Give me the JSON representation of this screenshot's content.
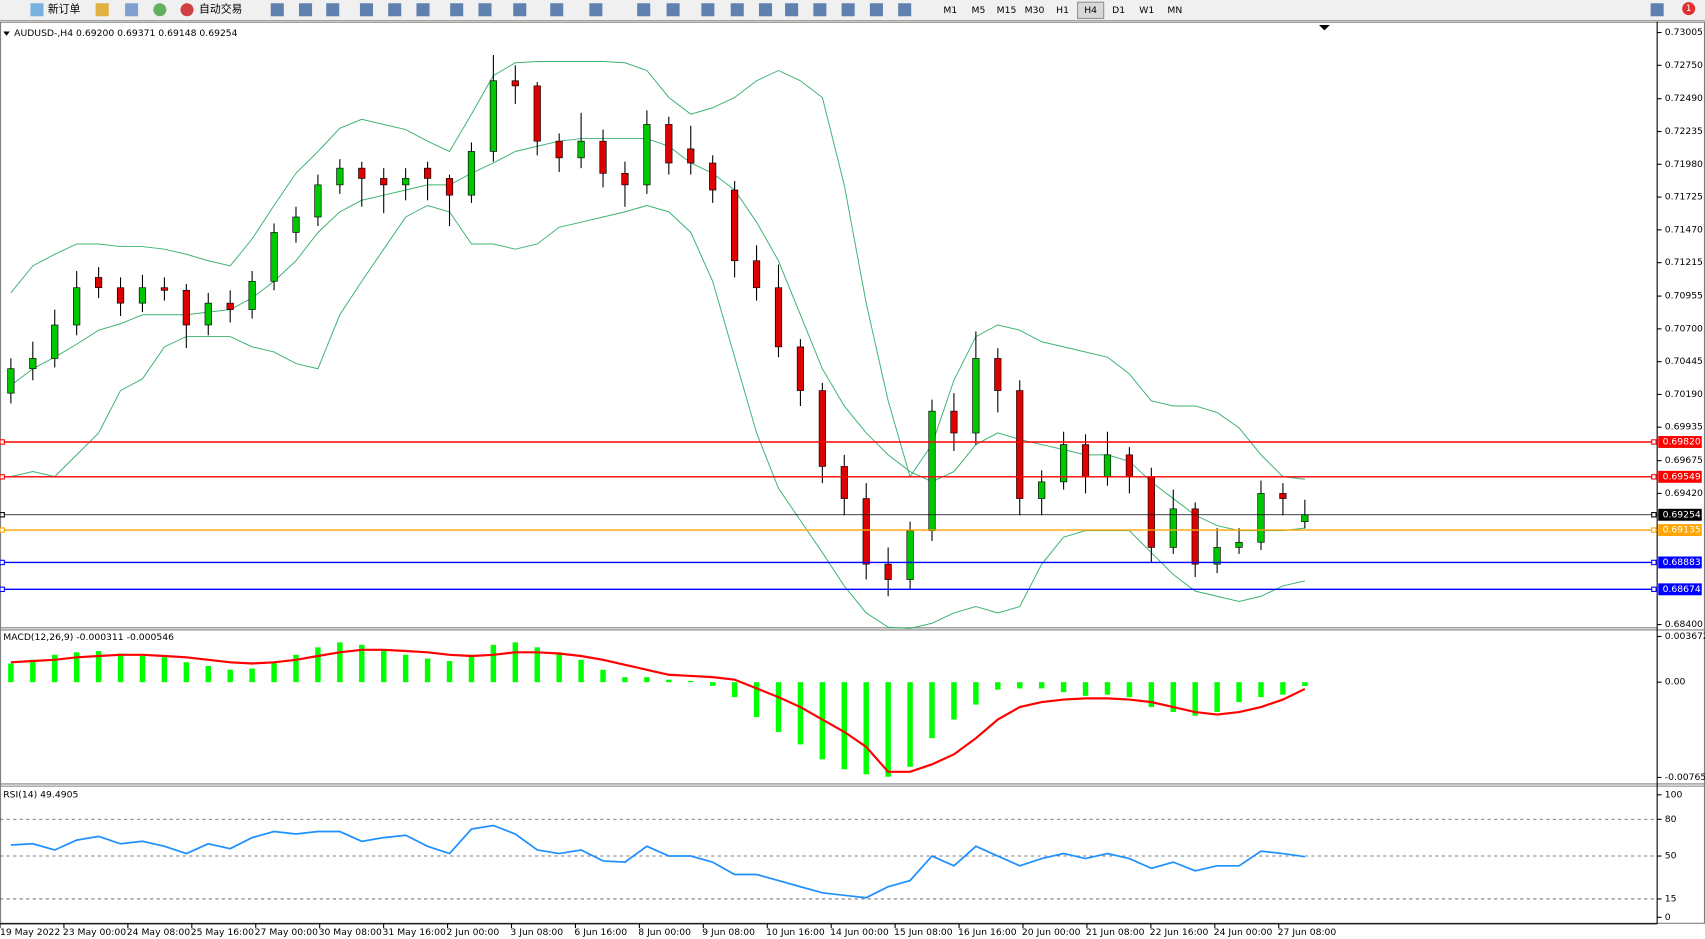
{
  "toolbar": {
    "new_order": "新订单",
    "auto_trading": "自动交易",
    "timeframes": [
      "M1",
      "M5",
      "M15",
      "M30",
      "H1",
      "H4",
      "D1",
      "W1",
      "MN"
    ],
    "notification_count": "1"
  },
  "chart": {
    "header": "AUDUSD-,H4  0.69200 0.69371 0.69148 0.69254",
    "ylim": [
      0.684,
      0.73005
    ],
    "price_ticks": [
      0.73005,
      {
        "value": 0.7275,
        "label": "0.72750"
      },
      {
        "value": 0.7249,
        "label": "0.72490"
      },
      0.72235,
      {
        "value": 0.7198,
        "label": "0.71980"
      },
      0.71725,
      {
        "value": 0.7147,
        "label": "0.71470"
      },
      0.71215,
      0.70955,
      {
        "value": 0.707,
        "label": "0.70700"
      },
      0.70445,
      {
        "value": 0.7019,
        "label": "0.70190"
      },
      0.69935,
      0.69675,
      {
        "value": 0.6942,
        "label": "0.69420"
      },
      {
        "value": 0.684,
        "label": "0.68400"
      }
    ],
    "candles": [
      [
        0.702,
        0.7047,
        0.7012,
        0.7039
      ],
      [
        0.7039,
        0.706,
        0.703,
        0.7047
      ],
      [
        0.7047,
        0.7085,
        0.704,
        0.7073
      ],
      [
        0.7073,
        0.7115,
        0.7065,
        0.7102
      ],
      [
        0.711,
        0.7118,
        0.7094,
        0.7102
      ],
      [
        0.7102,
        0.711,
        0.708,
        0.709
      ],
      [
        0.709,
        0.7112,
        0.7083,
        0.7102
      ],
      [
        0.7102,
        0.711,
        0.7092,
        0.71
      ],
      [
        0.71,
        0.7105,
        0.7055,
        0.7073
      ],
      [
        0.7073,
        0.7098,
        0.7065,
        0.709
      ],
      [
        0.709,
        0.71,
        0.7075,
        0.7085
      ],
      [
        0.7085,
        0.7115,
        0.7078,
        0.7107
      ],
      [
        0.7107,
        0.7152,
        0.71,
        0.7145
      ],
      [
        0.7145,
        0.7165,
        0.7137,
        0.7157
      ],
      [
        0.7157,
        0.719,
        0.715,
        0.7182
      ],
      [
        0.7182,
        0.7202,
        0.7175,
        0.7195
      ],
      [
        0.7195,
        0.72,
        0.7165,
        0.7187
      ],
      [
        0.7187,
        0.7195,
        0.716,
        0.7182
      ],
      [
        0.7182,
        0.7195,
        0.717,
        0.7187
      ],
      [
        0.7195,
        0.72,
        0.717,
        0.7187
      ],
      [
        0.7187,
        0.719,
        0.715,
        0.7174
      ],
      [
        0.7174,
        0.7215,
        0.7168,
        0.7208
      ],
      [
        0.7208,
        0.7283,
        0.72,
        0.7263
      ],
      [
        0.7263,
        0.7275,
        0.7245,
        0.7259
      ],
      [
        0.7259,
        0.7262,
        0.7205,
        0.7216
      ],
      [
        0.7216,
        0.7222,
        0.7192,
        0.7203
      ],
      [
        0.7203,
        0.7238,
        0.7195,
        0.7216
      ],
      [
        0.7216,
        0.7225,
        0.718,
        0.7191
      ],
      [
        0.7191,
        0.72,
        0.7165,
        0.7182
      ],
      [
        0.7182,
        0.724,
        0.7175,
        0.7229
      ],
      [
        0.7229,
        0.7235,
        0.719,
        0.7199
      ],
      [
        0.721,
        0.7228,
        0.719,
        0.7199
      ],
      [
        0.7199,
        0.7205,
        0.7168,
        0.7178
      ],
      [
        0.7178,
        0.7185,
        0.711,
        0.7123
      ],
      [
        0.7123,
        0.7135,
        0.7092,
        0.7102
      ],
      [
        0.7102,
        0.712,
        0.7048,
        0.7056
      ],
      [
        0.7056,
        0.7062,
        0.701,
        0.7022
      ],
      [
        0.7022,
        0.7028,
        0.695,
        0.6963
      ],
      [
        0.6963,
        0.6972,
        0.6925,
        0.6938
      ],
      [
        0.6938,
        0.695,
        0.6875,
        0.6887
      ],
      [
        0.6887,
        0.69,
        0.6862,
        0.6875
      ],
      [
        0.6875,
        0.692,
        0.6868,
        0.6913
      ],
      [
        0.6913,
        0.7015,
        0.6905,
        0.7006
      ],
      [
        0.7006,
        0.702,
        0.6975,
        0.6989
      ],
      [
        0.6989,
        0.7068,
        0.698,
        0.7047
      ],
      [
        0.7047,
        0.7055,
        0.7005,
        0.7022
      ],
      [
        0.7022,
        0.703,
        0.6925,
        0.6938
      ],
      [
        0.6938,
        0.696,
        0.6925,
        0.6951
      ],
      [
        0.6951,
        0.699,
        0.6945,
        0.698
      ],
      [
        0.698,
        0.6988,
        0.6942,
        0.6955
      ],
      [
        0.6955,
        0.699,
        0.6948,
        0.6972
      ],
      [
        0.6972,
        0.6978,
        0.6942,
        0.6955
      ],
      [
        0.6955,
        0.6962,
        0.6888,
        0.69
      ],
      [
        0.69,
        0.6945,
        0.6895,
        0.693
      ],
      [
        0.693,
        0.6935,
        0.6877,
        0.6887
      ],
      [
        0.6887,
        0.6915,
        0.688,
        0.69
      ],
      [
        0.69,
        0.6915,
        0.6895,
        0.6904
      ],
      [
        0.6904,
        0.6952,
        0.6898,
        0.6942
      ],
      [
        0.6942,
        0.695,
        0.6925,
        0.6938
      ],
      [
        0.692,
        0.69371,
        0.69148,
        0.69254
      ]
    ],
    "bollinger": {
      "color": "#3cb371",
      "upper": [
        0.7098,
        0.7119,
        0.7128,
        0.7136,
        0.7136,
        0.7134,
        0.7134,
        0.7132,
        0.7128,
        0.7123,
        0.7119,
        0.714,
        0.7166,
        0.7191,
        0.7208,
        0.7226,
        0.7233,
        0.7229,
        0.7225,
        0.7216,
        0.7208,
        0.7237,
        0.7267,
        0.7277,
        0.7278,
        0.7278,
        0.7278,
        0.7278,
        0.7277,
        0.7271,
        0.725,
        0.7237,
        0.7242,
        0.725,
        0.7263,
        0.7271,
        0.7263,
        0.725,
        0.7182,
        0.709,
        0.7014,
        0.6955,
        0.698,
        0.703,
        0.7064,
        0.7073,
        0.7069,
        0.706,
        0.7056,
        0.7052,
        0.7048,
        0.7035,
        0.7014,
        0.701,
        0.701,
        0.7005,
        0.6993,
        0.6972,
        0.6955,
        0.6953
      ],
      "middle": [
        0.7026,
        0.7039,
        0.7048,
        0.7058,
        0.7069,
        0.7074,
        0.7081,
        0.7081,
        0.7081,
        0.7083,
        0.7085,
        0.7094,
        0.7107,
        0.7123,
        0.7145,
        0.7161,
        0.717,
        0.7174,
        0.7178,
        0.7182,
        0.7182,
        0.7191,
        0.7199,
        0.7208,
        0.7212,
        0.7216,
        0.7218,
        0.7218,
        0.7218,
        0.7218,
        0.7212,
        0.7199,
        0.7191,
        0.7178,
        0.7153,
        0.7123,
        0.7081,
        0.7039,
        0.701,
        0.6989,
        0.6972,
        0.6959,
        0.6951,
        0.6959,
        0.698,
        0.6989,
        0.6984,
        0.698,
        0.6976,
        0.6972,
        0.6972,
        0.6967,
        0.6951,
        0.6938,
        0.6925,
        0.6917,
        0.6913,
        0.6913,
        0.6913,
        0.6915
      ],
      "lower": [
        0.6955,
        0.6959,
        0.6955,
        0.6972,
        0.6989,
        0.7022,
        0.7031,
        0.7056,
        0.7064,
        0.7064,
        0.7064,
        0.7056,
        0.7052,
        0.7043,
        0.7039,
        0.7081,
        0.7107,
        0.7132,
        0.7157,
        0.7166,
        0.7161,
        0.7136,
        0.7136,
        0.7132,
        0.7136,
        0.7149,
        0.7153,
        0.7157,
        0.7161,
        0.7166,
        0.7161,
        0.7145,
        0.7107,
        0.7048,
        0.6989,
        0.6946,
        0.6921,
        0.6896,
        0.687,
        0.6849,
        0.6838,
        0.6837,
        0.6841,
        0.6849,
        0.6854,
        0.6849,
        0.6854,
        0.6887,
        0.6908,
        0.6913,
        0.6913,
        0.6913,
        0.6896,
        0.6879,
        0.6866,
        0.6862,
        0.6858,
        0.6862,
        0.687,
        0.6874
      ]
    },
    "levels": [
      {
        "value": 0.6982,
        "label": "0.69820",
        "color": "#ff0000"
      },
      {
        "value": 0.69549,
        "color": "#ff0000"
      },
      {
        "value": 0.69254,
        "color": "#000000"
      },
      {
        "value": 0.69135,
        "color": "#ffa500"
      },
      {
        "value": 0.68883,
        "color": "#0000ff"
      },
      {
        "value": 0.68674,
        "color": "#0000ff"
      }
    ],
    "dates": [
      "19 May 2022",
      "23 May 00:00",
      "24 May 08:00",
      "25 May 16:00",
      "27 May 00:00",
      "30 May 08:00",
      "31 May 16:00",
      "2 Jun 00:00",
      "3 Jun 08:00",
      "6 Jun 16:00",
      "8 Jun 00:00",
      "9 Jun 08:00",
      "10 Jun 16:00",
      "14 Jun 00:00",
      "15 Jun 08:00",
      "16 Jun 16:00",
      "20 Jun 00:00",
      "21 Jun 08:00",
      "22 Jun 16:00",
      "24 Jun 00:00",
      "27 Jun 08:00"
    ]
  },
  "macd": {
    "label": "MACD(12,26,9) -0.000311 -0.000546",
    "ylim": [
      -0.007656,
      0.003672
    ],
    "ticks": [
      0.003672,
      {
        "value": 0,
        "label": "0.00"
      },
      -0.007656
    ],
    "histogram": [
      0.0015,
      0.0018,
      0.0022,
      0.0024,
      0.0025,
      0.0023,
      0.0021,
      0.002,
      0.0016,
      0.0013,
      0.001,
      0.0011,
      0.0016,
      0.0022,
      0.0028,
      0.0032,
      0.003,
      0.0026,
      0.0022,
      0.0019,
      0.0017,
      0.0022,
      0.003,
      0.0032,
      0.0028,
      0.0024,
      0.0018,
      0.001,
      0.0004,
      0.0004,
      0.0002,
      0.0001,
      -0.0003,
      -0.0012,
      -0.0028,
      -0.004,
      -0.005,
      -0.0062,
      -0.007,
      -0.0074,
      -0.0076,
      -0.0068,
      -0.0045,
      -0.003,
      -0.0018,
      -0.0006,
      -0.0005,
      -0.0005,
      -0.0008,
      -0.0011,
      -0.001,
      -0.0012,
      -0.002,
      -0.0024,
      -0.0027,
      -0.0024,
      -0.0016,
      -0.0012,
      -0.001,
      -0.000311
    ],
    "signal": [
      0.0016,
      0.0017,
      0.0018,
      0.002,
      0.0021,
      0.0022,
      0.0022,
      0.0021,
      0.002,
      0.0018,
      0.0016,
      0.0015,
      0.0016,
      0.0018,
      0.0021,
      0.0024,
      0.0026,
      0.0026,
      0.0025,
      0.0024,
      0.0022,
      0.0021,
      0.0022,
      0.0024,
      0.0024,
      0.0023,
      0.0021,
      0.0018,
      0.0014,
      0.001,
      0.0006,
      0.0005,
      0.0004,
      0.0002,
      -0.0005,
      -0.0012,
      -0.002,
      -0.003,
      -0.004,
      -0.0052,
      -0.0072,
      -0.0072,
      -0.0066,
      -0.0058,
      -0.0045,
      -0.003,
      -0.002,
      -0.0016,
      -0.0014,
      -0.0013,
      -0.0013,
      -0.0014,
      -0.0016,
      -0.002,
      -0.0024,
      -0.0026,
      -0.0024,
      -0.002,
      -0.0014,
      -0.000546
    ],
    "hist_color": "#00ff00",
    "signal_color": "#ff0000"
  },
  "rsi": {
    "label": "RSI(14) 49.4905",
    "ylim": [
      0,
      100
    ],
    "ticks": [
      100,
      80,
      50,
      15,
      0
    ],
    "levels": [
      80,
      50,
      15
    ],
    "color": "#1e90ff",
    "values": [
      59,
      60,
      55,
      63,
      66,
      60,
      62,
      58,
      52,
      60,
      56,
      65,
      70,
      68,
      70,
      70,
      62,
      65,
      67,
      58,
      52,
      72,
      75,
      68,
      55,
      52,
      55,
      46,
      45,
      58,
      50,
      50,
      45,
      35,
      35,
      30,
      25,
      20,
      18,
      16,
      25,
      30,
      50,
      42,
      58,
      50,
      42,
      48,
      52,
      48,
      52,
      48,
      40,
      45,
      38,
      42,
      42,
      54,
      52,
      49.4905
    ]
  }
}
